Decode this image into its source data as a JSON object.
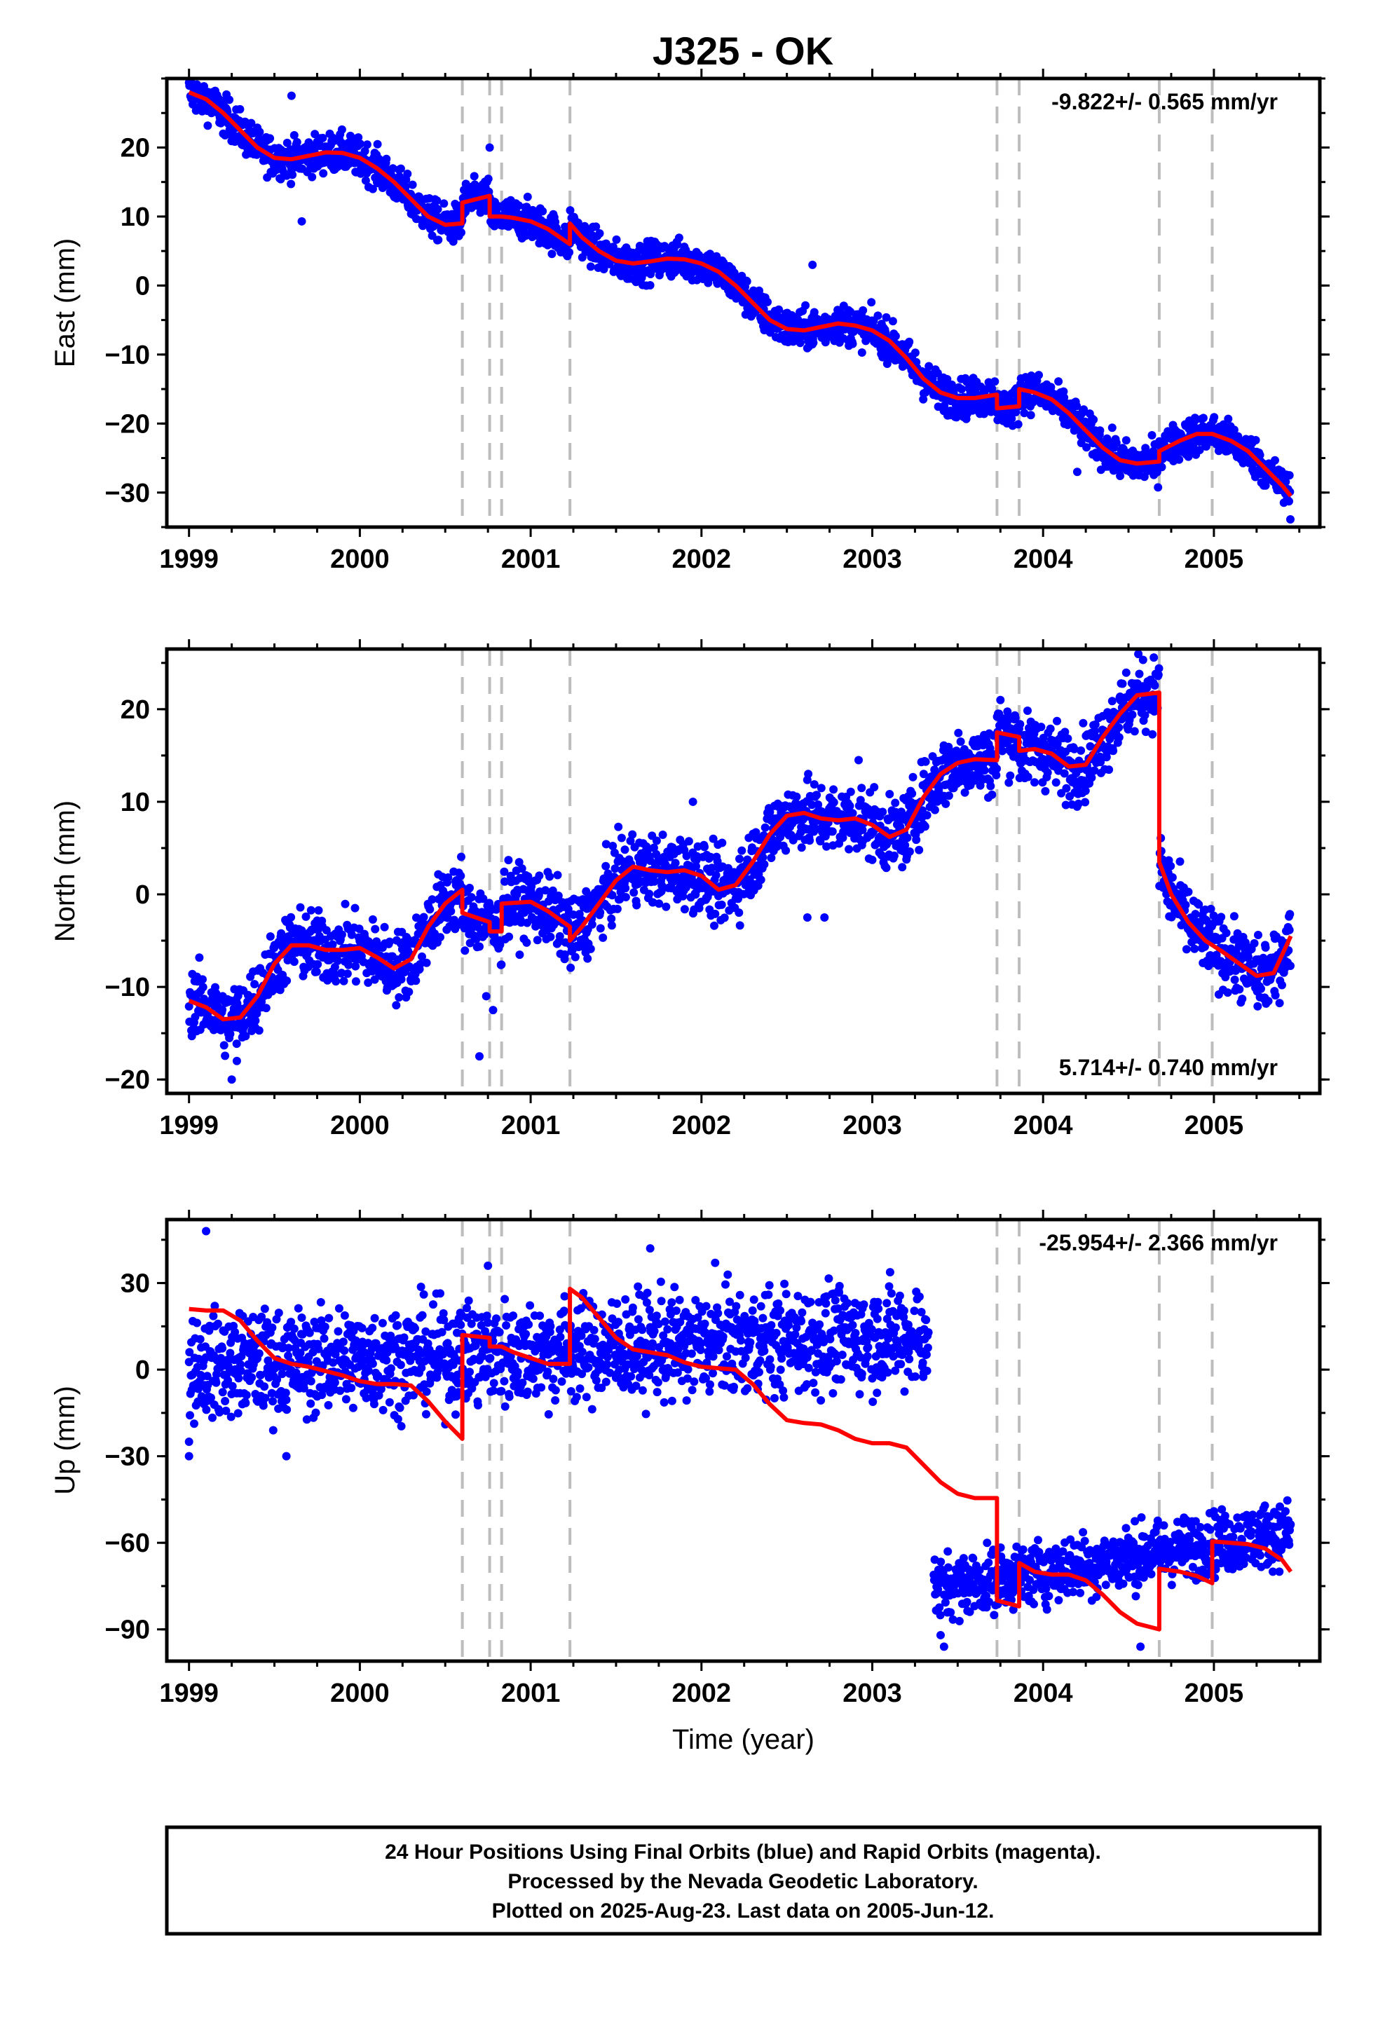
{
  "title": "J325 - OK",
  "footer": {
    "lines": [
      "24 Hour Positions Using Final Orbits (blue) and Rapid Orbits (magenta).",
      "Processed by the Nevada Geodetic Laboratory.",
      "Plotted on 2025-Aug-23. Last data on 2005-Jun-12."
    ]
  },
  "colors": {
    "points": "#0000ff",
    "model": "#ff0000",
    "event_lines": "#bdbdbd"
  },
  "chart_data": [
    {
      "type": "scatter",
      "name": "east",
      "ylabel": "East (mm)",
      "xlabel": "",
      "rate_label": "-9.822+/- 0.565 mm/yr",
      "rate_position": "top-right",
      "xlim": [
        1998.87,
        2005.62
      ],
      "ylim": [
        -35,
        30
      ],
      "xticks": [
        1999,
        2000,
        2001,
        2002,
        2003,
        2004,
        2005
      ],
      "yticks": [
        -30,
        -20,
        -10,
        0,
        10,
        20
      ],
      "event_lines": [
        2000.6,
        2000.76,
        2000.83,
        2001.23,
        2003.73,
        2003.86,
        2004.68,
        2004.99
      ],
      "model": [
        [
          1999.0,
          28
        ],
        [
          1999.1,
          27
        ],
        [
          1999.2,
          25
        ],
        [
          1999.3,
          22.5
        ],
        [
          1999.4,
          20
        ],
        [
          1999.5,
          18.5
        ],
        [
          1999.6,
          18.3
        ],
        [
          1999.7,
          18.8
        ],
        [
          1999.8,
          19.3
        ],
        [
          1999.9,
          19.2
        ],
        [
          2000.0,
          18.5
        ],
        [
          2000.1,
          17
        ],
        [
          2000.2,
          15
        ],
        [
          2000.3,
          12.5
        ],
        [
          2000.4,
          10
        ],
        [
          2000.5,
          8.8
        ],
        [
          2000.6,
          9
        ],
        [
          2000.6,
          12
        ],
        [
          2000.76,
          13
        ],
        [
          2000.76,
          10
        ],
        [
          2000.83,
          10
        ],
        [
          2000.9,
          9.8
        ],
        [
          2001.0,
          9.3
        ],
        [
          2001.1,
          8.2
        ],
        [
          2001.23,
          6
        ],
        [
          2001.23,
          9
        ],
        [
          2001.3,
          7
        ],
        [
          2001.4,
          5
        ],
        [
          2001.5,
          3.6
        ],
        [
          2001.6,
          3.2
        ],
        [
          2001.7,
          3.5
        ],
        [
          2001.8,
          3.9
        ],
        [
          2001.9,
          3.8
        ],
        [
          2002.0,
          3.2
        ],
        [
          2002.1,
          2
        ],
        [
          2002.2,
          0
        ],
        [
          2002.3,
          -2.5
        ],
        [
          2002.4,
          -5
        ],
        [
          2002.5,
          -6.3
        ],
        [
          2002.6,
          -6.5
        ],
        [
          2002.7,
          -6
        ],
        [
          2002.8,
          -5.5
        ],
        [
          2002.9,
          -5.8
        ],
        [
          2003.0,
          -6.5
        ],
        [
          2003.1,
          -8
        ],
        [
          2003.2,
          -10.5
        ],
        [
          2003.3,
          -13.5
        ],
        [
          2003.4,
          -15.5
        ],
        [
          2003.5,
          -16.3
        ],
        [
          2003.6,
          -16.3
        ],
        [
          2003.73,
          -15.8
        ],
        [
          2003.73,
          -17.8
        ],
        [
          2003.86,
          -17.5
        ],
        [
          2003.86,
          -15
        ],
        [
          2003.95,
          -15.5
        ],
        [
          2004.05,
          -16.5
        ],
        [
          2004.15,
          -18.5
        ],
        [
          2004.25,
          -21
        ],
        [
          2004.35,
          -23.5
        ],
        [
          2004.45,
          -25.3
        ],
        [
          2004.55,
          -25.8
        ],
        [
          2004.68,
          -25.5
        ],
        [
          2004.68,
          -24
        ],
        [
          2004.8,
          -22.5
        ],
        [
          2004.9,
          -21.5
        ],
        [
          2004.99,
          -21.5
        ],
        [
          2005.1,
          -22.5
        ],
        [
          2005.2,
          -24
        ],
        [
          2005.3,
          -26.5
        ],
        [
          2005.4,
          -29
        ],
        [
          2005.45,
          -30.5
        ]
      ],
      "scatter": {
        "start": 1999.0,
        "end": 2005.45,
        "spread": 1.4,
        "outliers": [
          [
            1999.2,
            22
          ],
          [
            1999.6,
            27.5
          ],
          [
            1999.66,
            9.3
          ],
          [
            2000.76,
            20
          ],
          [
            2002.65,
            3
          ],
          [
            2004.2,
            -27
          ]
        ]
      }
    },
    {
      "type": "scatter",
      "name": "north",
      "ylabel": "North (mm)",
      "xlabel": "",
      "rate_label": "5.714+/- 0.740 mm/yr",
      "rate_position": "bottom-right",
      "xlim": [
        1998.87,
        2005.62
      ],
      "ylim": [
        -21.5,
        26.5
      ],
      "xticks": [
        1999,
        2000,
        2001,
        2002,
        2003,
        2004,
        2005
      ],
      "yticks": [
        -20,
        -10,
        0,
        10,
        20
      ],
      "event_lines": [
        2000.6,
        2000.76,
        2000.83,
        2001.23,
        2003.73,
        2003.86,
        2004.68,
        2004.99
      ],
      "model": [
        [
          1999.0,
          -11.5
        ],
        [
          1999.1,
          -12.2
        ],
        [
          1999.2,
          -13.5
        ],
        [
          1999.3,
          -13.3
        ],
        [
          1999.4,
          -11
        ],
        [
          1999.5,
          -7.5
        ],
        [
          1999.6,
          -5.5
        ],
        [
          1999.7,
          -5.5
        ],
        [
          1999.8,
          -6
        ],
        [
          1999.9,
          -6
        ],
        [
          2000.0,
          -5.8
        ],
        [
          2000.1,
          -6.8
        ],
        [
          2000.2,
          -8
        ],
        [
          2000.3,
          -7
        ],
        [
          2000.4,
          -3.5
        ],
        [
          2000.5,
          -1
        ],
        [
          2000.6,
          0.5
        ],
        [
          2000.6,
          -2
        ],
        [
          2000.76,
          -3
        ],
        [
          2000.76,
          -4
        ],
        [
          2000.83,
          -4
        ],
        [
          2000.83,
          -1
        ],
        [
          2001.0,
          -0.8
        ],
        [
          2001.1,
          -1.8
        ],
        [
          2001.23,
          -3.5
        ],
        [
          2001.23,
          -5
        ],
        [
          2001.3,
          -3.5
        ],
        [
          2001.4,
          -1
        ],
        [
          2001.5,
          1.5
        ],
        [
          2001.6,
          3
        ],
        [
          2001.7,
          2.6
        ],
        [
          2001.8,
          2.4
        ],
        [
          2001.9,
          2.6
        ],
        [
          2002.0,
          2
        ],
        [
          2002.1,
          0.5
        ],
        [
          2002.2,
          1
        ],
        [
          2002.3,
          3.5
        ],
        [
          2002.4,
          6.5
        ],
        [
          2002.5,
          8.5
        ],
        [
          2002.6,
          8.8
        ],
        [
          2002.7,
          8.2
        ],
        [
          2002.8,
          8
        ],
        [
          2002.9,
          8.2
        ],
        [
          2003.0,
          7.5
        ],
        [
          2003.1,
          6.2
        ],
        [
          2003.2,
          7
        ],
        [
          2003.3,
          10.5
        ],
        [
          2003.4,
          13
        ],
        [
          2003.5,
          14.2
        ],
        [
          2003.6,
          14.6
        ],
        [
          2003.73,
          14.5
        ],
        [
          2003.73,
          17.5
        ],
        [
          2003.86,
          17
        ],
        [
          2003.86,
          15.5
        ],
        [
          2003.95,
          15.7
        ],
        [
          2004.05,
          15.2
        ],
        [
          2004.15,
          13.8
        ],
        [
          2004.25,
          14
        ],
        [
          2004.35,
          17
        ],
        [
          2004.45,
          19.5
        ],
        [
          2004.55,
          21.5
        ],
        [
          2004.68,
          21.8
        ],
        [
          2004.68,
          3.5
        ],
        [
          2004.75,
          0
        ],
        [
          2004.85,
          -3
        ],
        [
          2004.95,
          -5
        ],
        [
          2005.05,
          -6.2
        ],
        [
          2005.15,
          -7.5
        ],
        [
          2005.25,
          -8.8
        ],
        [
          2005.35,
          -8.5
        ],
        [
          2005.45,
          -4.5
        ]
      ],
      "scatter": {
        "start": 1999.0,
        "end": 2005.45,
        "spread": 1.9,
        "outliers": [
          [
            1999.25,
            -20
          ],
          [
            1999.28,
            -18
          ],
          [
            2000.7,
            -17.5
          ],
          [
            2000.74,
            -11
          ],
          [
            2000.78,
            -12.5
          ],
          [
            2001.2,
            -6.5
          ],
          [
            2001.95,
            10
          ],
          [
            2002.62,
            -2.5
          ],
          [
            2002.72,
            -2.5
          ],
          [
            2002.92,
            14.5
          ]
        ]
      }
    },
    {
      "type": "scatter",
      "name": "up",
      "ylabel": "Up (mm)",
      "xlabel": "Time (year)",
      "rate_label": "-25.954+/- 2.366 mm/yr",
      "rate_position": "top-right",
      "xlim": [
        1998.87,
        2005.62
      ],
      "ylim": [
        -101,
        52
      ],
      "xticks": [
        1999,
        2000,
        2001,
        2002,
        2003,
        2004,
        2005
      ],
      "yticks": [
        -90,
        -60,
        -30,
        0,
        30
      ],
      "event_lines": [
        2000.6,
        2000.76,
        2000.83,
        2001.23,
        2003.73,
        2003.86,
        2004.68,
        2004.99
      ],
      "model": [
        [
          1999.0,
          21
        ],
        [
          1999.1,
          20.5
        ],
        [
          1999.2,
          20.5
        ],
        [
          1999.3,
          17
        ],
        [
          1999.4,
          10
        ],
        [
          1999.5,
          4
        ],
        [
          1999.6,
          2
        ],
        [
          1999.7,
          1
        ],
        [
          1999.8,
          -0.5
        ],
        [
          1999.9,
          -2
        ],
        [
          2000.0,
          -4
        ],
        [
          2000.1,
          -5
        ],
        [
          2000.2,
          -5
        ],
        [
          2000.3,
          -5.5
        ],
        [
          2000.4,
          -11
        ],
        [
          2000.5,
          -18
        ],
        [
          2000.6,
          -24
        ],
        [
          2000.6,
          12
        ],
        [
          2000.76,
          11
        ],
        [
          2000.76,
          8
        ],
        [
          2000.83,
          8
        ],
        [
          2000.9,
          6
        ],
        [
          2001.0,
          4
        ],
        [
          2001.1,
          2
        ],
        [
          2001.23,
          2
        ],
        [
          2001.23,
          28
        ],
        [
          2001.3,
          25
        ],
        [
          2001.4,
          18
        ],
        [
          2001.5,
          11
        ],
        [
          2001.6,
          7
        ],
        [
          2001.7,
          6
        ],
        [
          2001.8,
          5
        ],
        [
          2001.9,
          2.5
        ],
        [
          2002.0,
          1
        ],
        [
          2002.1,
          0.5
        ],
        [
          2002.2,
          0
        ],
        [
          2002.3,
          -5
        ],
        [
          2002.4,
          -12
        ],
        [
          2002.5,
          -17.5
        ],
        [
          2002.6,
          -18.5
        ],
        [
          2002.7,
          -19
        ],
        [
          2002.8,
          -21
        ],
        [
          2002.9,
          -24
        ],
        [
          2003.0,
          -25.5
        ],
        [
          2003.1,
          -25.5
        ],
        [
          2003.2,
          -27
        ],
        [
          2003.3,
          -33
        ],
        [
          2003.4,
          -39
        ],
        [
          2003.5,
          -43
        ],
        [
          2003.6,
          -44.5
        ],
        [
          2003.73,
          -44.5
        ],
        [
          2003.73,
          -80
        ],
        [
          2003.86,
          -82
        ],
        [
          2003.86,
          -67
        ],
        [
          2003.95,
          -70
        ],
        [
          2004.05,
          -71
        ],
        [
          2004.15,
          -71
        ],
        [
          2004.25,
          -73
        ],
        [
          2004.35,
          -78
        ],
        [
          2004.45,
          -84
        ],
        [
          2004.55,
          -88
        ],
        [
          2004.68,
          -90
        ],
        [
          2004.68,
          -69
        ],
        [
          2004.8,
          -70
        ],
        [
          2004.9,
          -71.5
        ],
        [
          2004.99,
          -74
        ],
        [
          2004.99,
          -59.5
        ],
        [
          2005.1,
          -60
        ],
        [
          2005.2,
          -60.5
        ],
        [
          2005.3,
          -62
        ],
        [
          2005.4,
          -66
        ],
        [
          2005.45,
          -70
        ]
      ],
      "scatter": {
        "segments": [
          {
            "start": 1999.0,
            "end": 2003.33,
            "baseline": "linear",
            "from": 1,
            "to": 12,
            "spread": 9
          },
          {
            "start": 2003.36,
            "end": 2005.45,
            "baseline": "linear",
            "from": -76,
            "to": -56,
            "spread": 5.5
          }
        ],
        "outliers": [
          [
            1999.0,
            -25
          ],
          [
            1999.0,
            -30
          ],
          [
            1999.1,
            48
          ],
          [
            1999.57,
            -30
          ],
          [
            2000.75,
            36
          ],
          [
            2001.7,
            42
          ],
          [
            2002.08,
            37
          ],
          [
            2003.4,
            -92
          ],
          [
            2003.42,
            -96
          ],
          [
            2004.57,
            -96
          ]
        ]
      }
    }
  ]
}
